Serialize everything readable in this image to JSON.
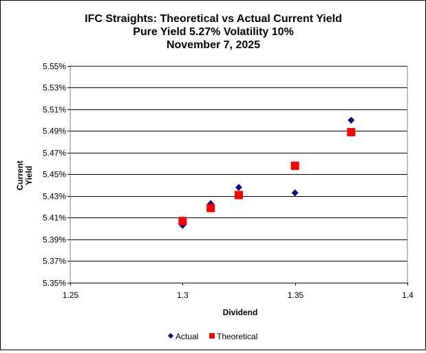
{
  "chart_data": {
    "type": "scatter",
    "title": [
      "IFC Straights: Theoretical vs Actual Current Yield",
      "Pure Yield 5.27% Volatility 10%",
      "November 7, 2025"
    ],
    "xlabel": "Dividend",
    "ylabel": [
      "Current",
      "Yield"
    ],
    "xlim": [
      1.25,
      1.4
    ],
    "ylim": [
      5.35,
      5.55
    ],
    "x_ticks": [
      "1.25",
      "1.3",
      "1.35",
      "1.4"
    ],
    "x_tick_values": [
      1.25,
      1.3,
      1.35,
      1.4
    ],
    "y_ticks": [
      "5.35%",
      "5.37%",
      "5.39%",
      "5.41%",
      "5.43%",
      "5.45%",
      "5.47%",
      "5.49%",
      "5.51%",
      "5.53%",
      "5.55%"
    ],
    "y_tick_values": [
      5.35,
      5.37,
      5.39,
      5.41,
      5.43,
      5.45,
      5.47,
      5.49,
      5.51,
      5.53,
      5.55
    ],
    "grid": "horizontal",
    "legend_position": "bottom",
    "series": [
      {
        "name": "Actual",
        "color": "#000080",
        "marker": "diamond",
        "x": [
          1.3,
          1.3125,
          1.325,
          1.35,
          1.375
        ],
        "y": [
          5.403,
          5.423,
          5.438,
          5.433,
          5.5
        ]
      },
      {
        "name": "Theoretical",
        "color": "#FF0000",
        "marker": "square",
        "x": [
          1.3,
          1.3125,
          1.325,
          1.35,
          1.375
        ],
        "y": [
          5.407,
          5.419,
          5.431,
          5.458,
          5.489
        ]
      }
    ]
  }
}
